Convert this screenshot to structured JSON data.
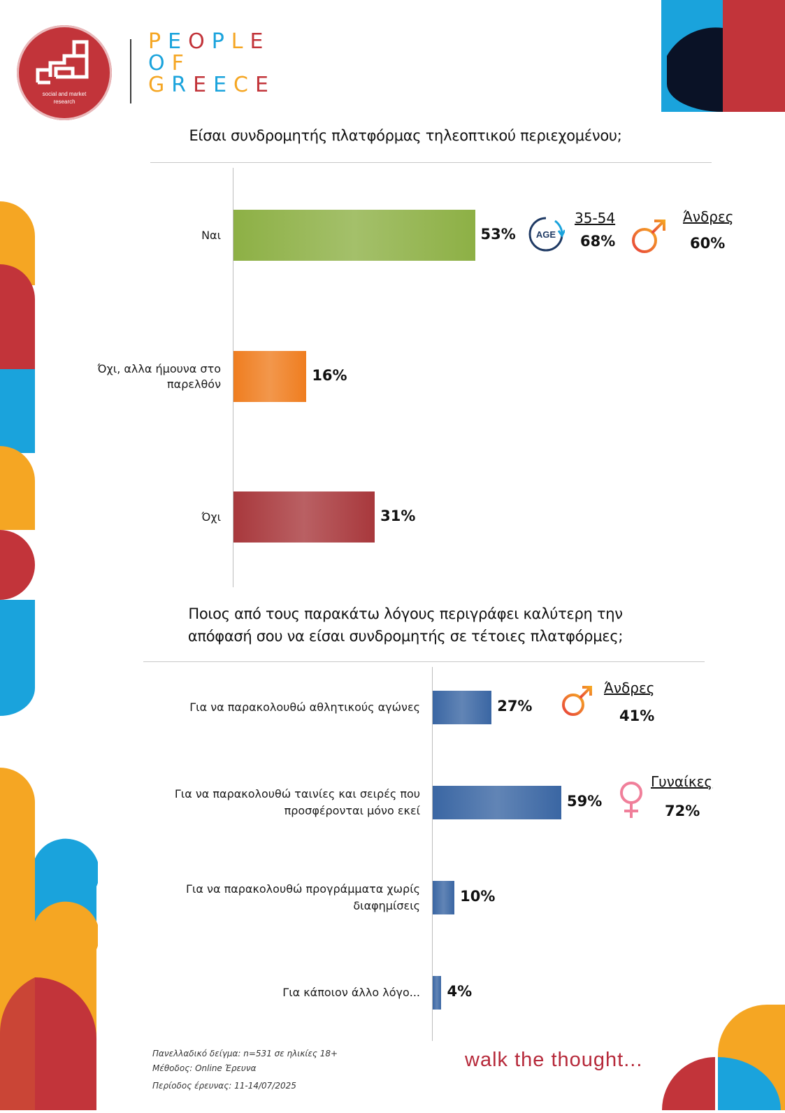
{
  "logo": {
    "subtitle_line1": "social and market",
    "subtitle_line2": "research",
    "brand_lines": [
      "PEOPLE",
      "OF",
      "GREECE"
    ]
  },
  "colors": {
    "red": "#c2343a",
    "orange": "#f5a623",
    "blue": "#1aa3dc",
    "navy": "#0a1226",
    "bar_green": "#8db045",
    "bar_orange": "#ef7d1f",
    "bar_red": "#a8383c",
    "bar_blue": "#3a66a3",
    "tagline": "#b6293a"
  },
  "chart_data": [
    {
      "type": "bar",
      "orientation": "horizontal",
      "title": "Είσαι συνδρομητής πλατφόρμας τηλεοπτικού περιεχομένου;",
      "categories": [
        "Ναι",
        "Όχι, αλλα ήμουνα στο παρελθόν",
        "Όχι"
      ],
      "values": [
        53,
        16,
        31
      ],
      "value_labels": [
        "53%",
        "16%",
        "31%"
      ],
      "bar_colors": [
        "#8db045",
        "#ef7d1f",
        "#a8383c"
      ],
      "xlim": [
        0,
        100
      ],
      "annotations": [
        {
          "icon": "age-icon",
          "label": "35-54",
          "value": "68%"
        },
        {
          "icon": "male-icon",
          "label": "Άνδρες",
          "value": "60%"
        }
      ]
    },
    {
      "type": "bar",
      "orientation": "horizontal",
      "title_line1": "Ποιος από τους παρακάτω λόγους περιγράφει καλύτερη την",
      "title_line2": "απόφασή σου να είσαι συνδρομητής σε τέτοιες πλατφόρμες;",
      "categories": [
        "Για να παρακολουθώ αθλητικούς αγώνες",
        "Για να παρακολουθώ ταινίες και σειρές που προσφέρονται μόνο εκεί",
        "Για να παρακολουθώ προγράμματα χωρίς διαφημίσεις",
        "Για κάποιον άλλο λόγο..."
      ],
      "category_lines": [
        [
          "Για να παρακολουθώ αθλητικούς αγώνες"
        ],
        [
          "Για να παρακολουθώ ταινίες και σειρές που",
          "προσφέρονται μόνο εκεί"
        ],
        [
          "Για να παρακολουθώ προγράμματα χωρίς",
          "διαφημίσεις"
        ],
        [
          "Για κάποιον άλλο λόγο..."
        ]
      ],
      "values": [
        27,
        59,
        10,
        4
      ],
      "value_labels": [
        "27%",
        "59%",
        "10%",
        "4%"
      ],
      "bar_color": "#3a66a3",
      "xlim": [
        0,
        100
      ],
      "annotations": [
        {
          "icon": "male-icon",
          "label": "Άνδρες",
          "value": "41%"
        },
        {
          "icon": "female-icon",
          "label": "Γυναίκες",
          "value": "72%"
        }
      ]
    }
  ],
  "footer": {
    "line1": "Πανελλαδικό δείγμα: n=531 σε ηλικίες 18+",
    "line2": "Μέθοδος: Online Έρευνα",
    "line3": "Περίοδος έρευνας:  11-14/07/2025"
  },
  "tagline": "walk the thought..."
}
